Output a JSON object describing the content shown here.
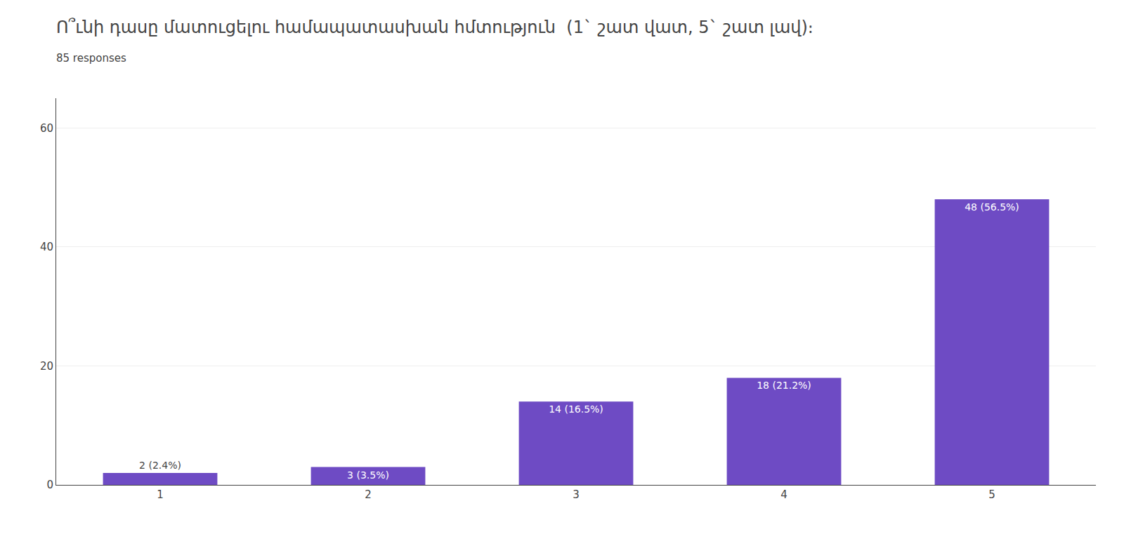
{
  "chart_data": {
    "type": "bar",
    "title": "Ո՞ւնի դասը մատուցելու համապատասխան հմտություն  (1` շատ վատ, 5` շատ լավ)։",
    "subtitle": "85 responses",
    "categories": [
      "1",
      "2",
      "3",
      "4",
      "5"
    ],
    "values": [
      2,
      3,
      14,
      18,
      48
    ],
    "value_labels": [
      "2 (2.4%)",
      "3 (3.5%)",
      "14 (16.5%)",
      "18 (21.2%)",
      "48 (56.5%)"
    ],
    "data_labels": true,
    "color": "#6E4BC4",
    "ylim": [
      0,
      65
    ],
    "yticks": [
      0,
      20,
      40,
      60
    ],
    "grid": true
  }
}
